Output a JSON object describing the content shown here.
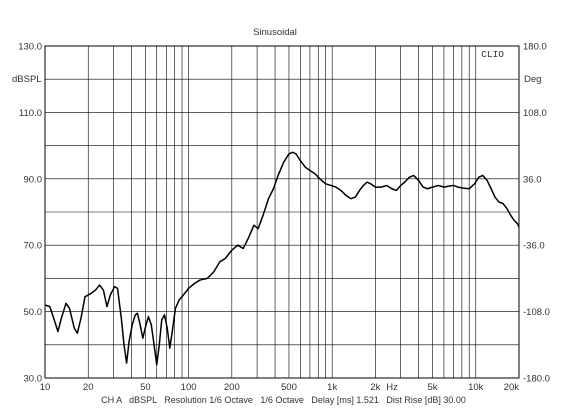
{
  "chart_data": {
    "type": "line",
    "title": "Sinusoidal",
    "brand": "CLIO",
    "xscale": "log",
    "xlim": [
      10,
      20000
    ],
    "ylim": [
      30,
      130
    ],
    "y2lim": [
      -180,
      180
    ],
    "ylabel": "dBSPL",
    "y2label": "Deg",
    "xunit": "Hz",
    "grid": true,
    "y_ticks": [
      {
        "v": 130,
        "label": "130.0"
      },
      {
        "v": 110,
        "label": "110.0"
      },
      {
        "v": 90,
        "label": "90.0"
      },
      {
        "v": 70,
        "label": "70.0"
      },
      {
        "v": 50,
        "label": "50.0"
      },
      {
        "v": 30,
        "label": "30.0"
      }
    ],
    "y2_ticks": [
      {
        "v": 130,
        "label": "180.0"
      },
      {
        "v": 110,
        "label": "108.0"
      },
      {
        "v": 90,
        "label": "36.0"
      },
      {
        "v": 70,
        "label": "-36.0"
      },
      {
        "v": 50,
        "label": "-108.0"
      },
      {
        "v": 30,
        "label": "-180.0"
      }
    ],
    "x_ticks": [
      {
        "v": 10,
        "label": "10"
      },
      {
        "v": 20,
        "label": "20"
      },
      {
        "v": 50,
        "label": "50"
      },
      {
        "v": 100,
        "label": "100"
      },
      {
        "v": 200,
        "label": "200"
      },
      {
        "v": 500,
        "label": "500"
      },
      {
        "v": 1000,
        "label": "1k"
      },
      {
        "v": 2000,
        "label": "2k"
      },
      {
        "v": 5000,
        "label": "5k"
      },
      {
        "v": 10000,
        "label": "10k"
      },
      {
        "v": 20000,
        "label": "20k"
      }
    ],
    "footer": "CH A   dBSPL   Resolution 1/6 Octave   1/6 Octave   Delay [ms] 1.521   Dist Rise [dB] 30.00",
    "series": [
      {
        "color": "#000000",
        "points": [
          [
            10,
            52
          ],
          [
            10.8,
            51.5
          ],
          [
            11.5,
            48
          ],
          [
            12.3,
            44
          ],
          [
            13,
            48
          ],
          [
            14,
            52.5
          ],
          [
            14.8,
            51
          ],
          [
            16,
            45
          ],
          [
            16.8,
            43.5
          ],
          [
            17.8,
            48
          ],
          [
            19,
            54.5
          ],
          [
            21,
            55.5
          ],
          [
            22.5,
            56.5
          ],
          [
            24,
            58
          ],
          [
            25.5,
            56.5
          ],
          [
            27,
            51.5
          ],
          [
            28.5,
            55
          ],
          [
            30.5,
            57.5
          ],
          [
            32,
            57
          ],
          [
            34,
            48
          ],
          [
            35.5,
            40
          ],
          [
            37,
            34.5
          ],
          [
            38.5,
            41
          ],
          [
            40.5,
            46
          ],
          [
            42.5,
            49
          ],
          [
            44,
            49.5
          ],
          [
            46,
            46
          ],
          [
            48,
            42
          ],
          [
            50.5,
            46
          ],
          [
            52.5,
            48.5
          ],
          [
            55,
            46
          ],
          [
            57.5,
            40
          ],
          [
            60,
            34
          ],
          [
            62.5,
            40
          ],
          [
            65,
            47.5
          ],
          [
            68,
            49
          ],
          [
            71,
            45
          ],
          [
            74,
            39
          ],
          [
            77,
            44
          ],
          [
            81,
            51
          ],
          [
            86,
            53.5
          ],
          [
            92,
            55
          ],
          [
            100,
            57
          ],
          [
            110,
            58.5
          ],
          [
            120,
            59.5
          ],
          [
            135,
            60
          ],
          [
            150,
            62
          ],
          [
            165,
            65
          ],
          [
            180,
            66
          ],
          [
            200,
            68.5
          ],
          [
            220,
            70
          ],
          [
            240,
            69
          ],
          [
            260,
            72
          ],
          [
            285,
            76
          ],
          [
            305,
            75
          ],
          [
            330,
            79
          ],
          [
            360,
            84
          ],
          [
            390,
            87
          ],
          [
            420,
            91
          ],
          [
            460,
            95
          ],
          [
            500,
            97.5
          ],
          [
            530,
            98
          ],
          [
            560,
            97.5
          ],
          [
            600,
            95.5
          ],
          [
            650,
            93.5
          ],
          [
            700,
            92.5
          ],
          [
            760,
            91.5
          ],
          [
            820,
            90
          ],
          [
            900,
            88.5
          ],
          [
            980,
            88
          ],
          [
            1060,
            87.5
          ],
          [
            1150,
            86.5
          ],
          [
            1250,
            85
          ],
          [
            1350,
            84
          ],
          [
            1450,
            84.5
          ],
          [
            1550,
            86.5
          ],
          [
            1650,
            88
          ],
          [
            1750,
            89
          ],
          [
            1850,
            88.5
          ],
          [
            2000,
            87.5
          ],
          [
            2200,
            87.5
          ],
          [
            2400,
            88
          ],
          [
            2600,
            87
          ],
          [
            2800,
            86.5
          ],
          [
            3000,
            88
          ],
          [
            3200,
            89
          ],
          [
            3450,
            90.5
          ],
          [
            3700,
            91
          ],
          [
            4000,
            89.5
          ],
          [
            4300,
            87.5
          ],
          [
            4600,
            87
          ],
          [
            5000,
            87.5
          ],
          [
            5500,
            88
          ],
          [
            6000,
            87.5
          ],
          [
            6500,
            87.8
          ],
          [
            7000,
            88
          ],
          [
            7500,
            87.5
          ],
          [
            8200,
            87.2
          ],
          [
            9000,
            87
          ],
          [
            9800,
            88.5
          ],
          [
            10500,
            90.5
          ],
          [
            11200,
            91
          ],
          [
            12000,
            89.5
          ],
          [
            12800,
            87
          ],
          [
            13600,
            84.5
          ],
          [
            14500,
            83
          ],
          [
            15500,
            82.5
          ],
          [
            16500,
            81
          ],
          [
            17500,
            79
          ],
          [
            18500,
            77.5
          ],
          [
            19500,
            76.5
          ],
          [
            20000,
            75.5
          ]
        ]
      }
    ]
  }
}
